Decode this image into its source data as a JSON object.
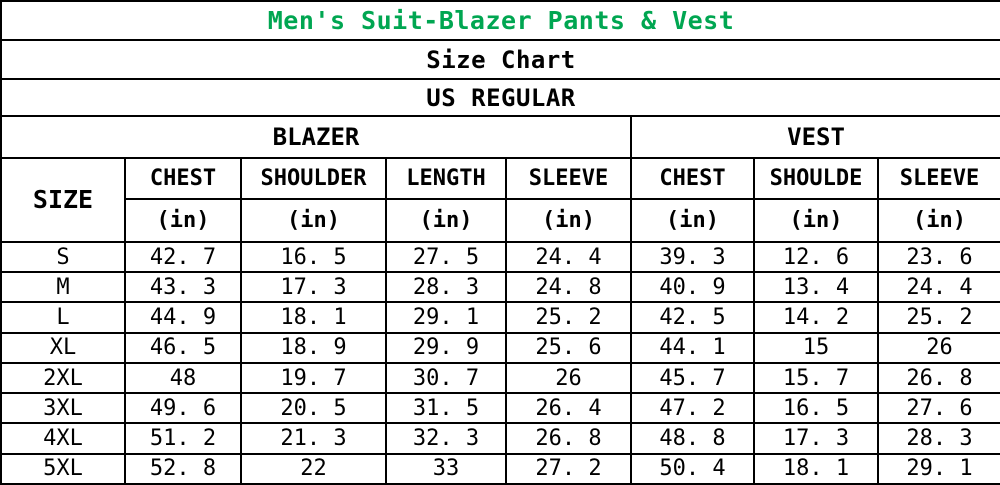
{
  "colors": {
    "title_green": "#00A651",
    "text": "#000000",
    "border": "#000000",
    "background": "#FFFFFF"
  },
  "chart_data": {
    "type": "table",
    "title": "Men's Suit-Blazer Pants & Vest",
    "subtitle": "Size Chart",
    "region": "US REGULAR",
    "size_header": "SIZE",
    "groups": [
      {
        "label": "BLAZER",
        "span": 5
      },
      {
        "label": "VEST",
        "span": 3
      }
    ],
    "columns": [
      {
        "group": "BLAZER",
        "label": "CHEST",
        "unit": "(in)"
      },
      {
        "group": "BLAZER",
        "label": "SHOULDER",
        "unit": "(in)"
      },
      {
        "group": "BLAZER",
        "label": "LENGTH",
        "unit": "(in)"
      },
      {
        "group": "BLAZER",
        "label": "SLEEVE",
        "unit": "(in)"
      },
      {
        "group": "VEST",
        "label": "CHEST",
        "unit": "(in)"
      },
      {
        "group": "VEST",
        "label": "SHOULDE",
        "unit": "(in)"
      },
      {
        "group": "VEST",
        "label": "SLEEVE",
        "unit": "(in)"
      }
    ],
    "rows": [
      {
        "size": "S",
        "values": [
          42.7,
          16.5,
          27.5,
          24.4,
          39.3,
          12.6,
          23.6
        ]
      },
      {
        "size": "M",
        "values": [
          43.3,
          17.3,
          28.3,
          24.8,
          40.9,
          13.4,
          24.4
        ]
      },
      {
        "size": "L",
        "values": [
          44.9,
          18.1,
          29.1,
          25.2,
          42.5,
          14.2,
          25.2
        ]
      },
      {
        "size": "XL",
        "values": [
          46.5,
          18.9,
          29.9,
          25.6,
          44.1,
          15,
          26
        ]
      },
      {
        "size": "2XL",
        "values": [
          48,
          19.7,
          30.7,
          26,
          45.7,
          15.7,
          26.8
        ]
      },
      {
        "size": "3XL",
        "values": [
          49.6,
          20.5,
          31.5,
          26.4,
          47.2,
          16.5,
          27.6
        ]
      },
      {
        "size": "4XL",
        "values": [
          51.2,
          21.3,
          32.3,
          26.8,
          48.8,
          17.3,
          28.3
        ]
      },
      {
        "size": "5XL",
        "values": [
          52.8,
          22,
          33,
          27.2,
          50.4,
          18.1,
          29.1
        ]
      }
    ]
  }
}
